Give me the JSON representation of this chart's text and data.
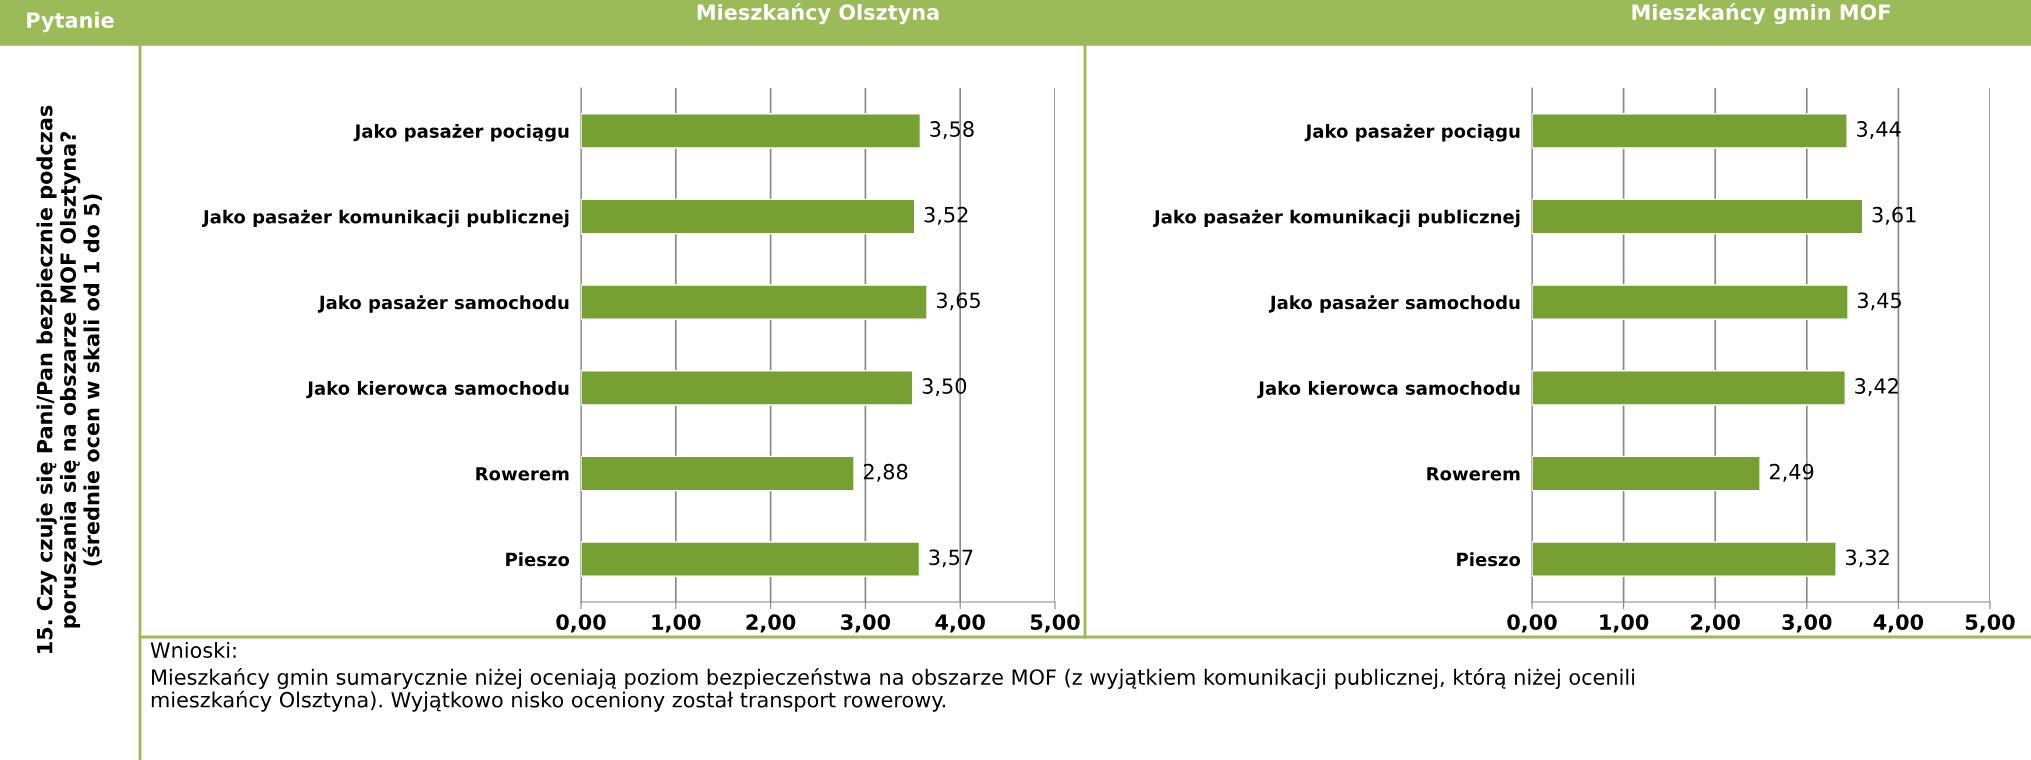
{
  "chart_data": [
    {
      "type": "bar",
      "orientation": "horizontal",
      "title": "Mieszkańcy Olsztyna",
      "categories": [
        "Jako pasażer pociągu",
        "Jako pasażer komunikacji publicznej",
        "Jako pasażer samochodu",
        "Jako kierowca samochodu",
        "Rowerem",
        "Pieszo"
      ],
      "values": [
        3.58,
        3.52,
        3.65,
        3.5,
        2.88,
        3.57
      ],
      "value_labels": [
        "3,58",
        "3,52",
        "3,65",
        "3,50",
        "2,88",
        "3,57"
      ],
      "color": "#77a033",
      "xlim": [
        0,
        5
      ],
      "xticks": [
        {
          "value": 0,
          "label": "0,00"
        },
        {
          "value": 1,
          "label": "1,00"
        },
        {
          "value": 2,
          "label": "2,00"
        },
        {
          "value": 3,
          "label": "3,00"
        },
        {
          "value": 4,
          "label": "4,00"
        },
        {
          "value": 5,
          "label": "5,00"
        }
      ],
      "grid": "x",
      "annotations": [
        "Pytanie",
        "15. Czy czuje się Pani/Pan bezpiecznie podczas\nporuszania się na obszarze MOF Olsztyna?\n(średnie ocen w skali od 1 do 5)",
        "Wnioski:",
        "Mieszkańcy gmin sumarycznie niżej oceniają poziom bezpieczeństwa na obszarze MOF (z wyjątkiem komunikacji publicznej, którą niżej ocenili\nmieszkańcy Olsztyna). Wyjątkowo nisko oceniony został transport rowerowy."
      ]
    },
    {
      "type": "bar",
      "orientation": "horizontal",
      "title": "Mieszkańcy gmin MOF",
      "categories": [
        "Jako pasażer pociągu",
        "Jako pasażer komunikacji publicznej",
        "Jako pasażer samochodu",
        "Jako kierowca samochodu",
        "Rowerem",
        "Pieszo"
      ],
      "values": [
        3.44,
        3.61,
        3.45,
        3.42,
        2.49,
        3.32
      ],
      "value_labels": [
        "3,44",
        "3,61",
        "3,45",
        "3,42",
        "2,49",
        "3,32"
      ],
      "color": "#77a033",
      "xlim": [
        0,
        5
      ],
      "xticks": [
        {
          "value": 0,
          "label": "0,00"
        },
        {
          "value": 1,
          "label": "1,00"
        },
        {
          "value": 2,
          "label": "2,00"
        },
        {
          "value": 3,
          "label": "3,00"
        },
        {
          "value": 4,
          "label": "4,00"
        },
        {
          "value": 5,
          "label": "5,00"
        }
      ],
      "grid": "x"
    }
  ]
}
